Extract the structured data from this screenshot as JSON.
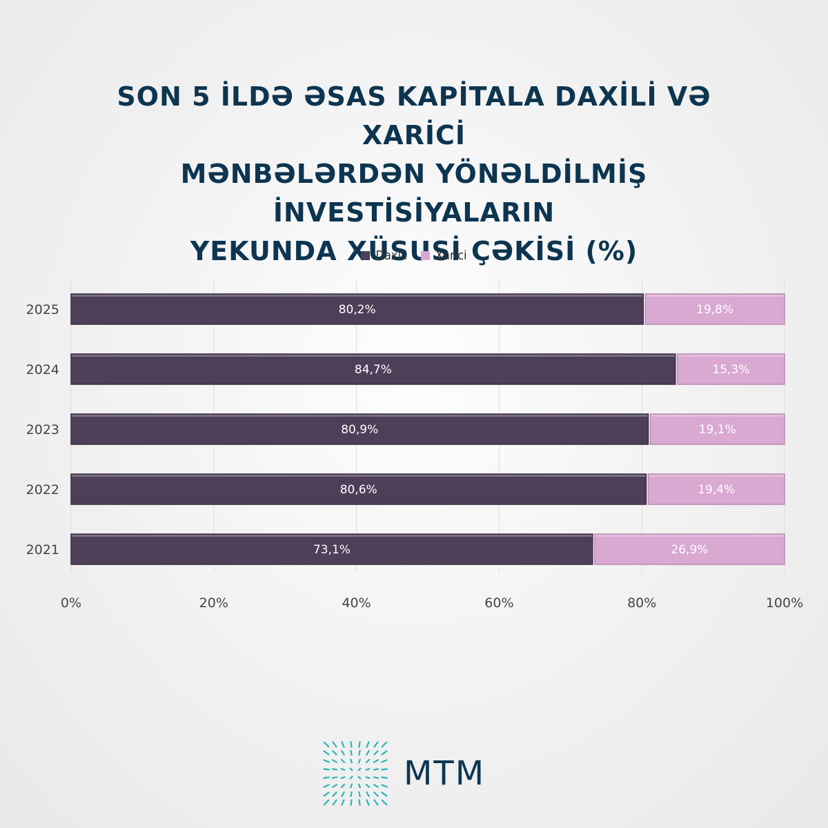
{
  "title_lines": [
    "SON 5 İLDƏ ƏSAS KAPİTALA DAXİLİ VƏ XARİCİ",
    "MƏNBƏLƏRDƏN YÖNƏLDİLMİŞ İNVESTİSİYALARIN",
    "YEKUNDA XÜSUSİ ÇƏKİSİ (%)"
  ],
  "colors": {
    "daxili": "#4e3f59",
    "xarici": "#d9a9d2",
    "title": "#0d3550",
    "logo": "#0d3550",
    "logo_accent": "#2ab3b5"
  },
  "logo": {
    "text": "MTM",
    "icon": "mtm-logo-icon"
  },
  "chart_data": {
    "type": "bar",
    "orientation": "horizontal",
    "stacked": true,
    "categories": [
      "2025",
      "2024",
      "2023",
      "2022",
      "2021"
    ],
    "series": [
      {
        "name": "Daxili",
        "values": [
          80.2,
          84.7,
          80.9,
          80.6,
          73.1
        ],
        "labels": [
          "80,2%",
          "84,7%",
          "80,9%",
          "80,6%",
          "73,1%"
        ]
      },
      {
        "name": "Xarici",
        "values": [
          19.8,
          15.3,
          19.1,
          19.4,
          26.9
        ],
        "labels": [
          "19,8%",
          "15,3%",
          "19,1%",
          "19,4%",
          "26,9%"
        ]
      }
    ],
    "xlim": [
      0,
      100
    ],
    "xticks": [
      "0%",
      "20%",
      "40%",
      "60%",
      "80%",
      "100%"
    ],
    "grid": true,
    "legend_position": "top"
  }
}
